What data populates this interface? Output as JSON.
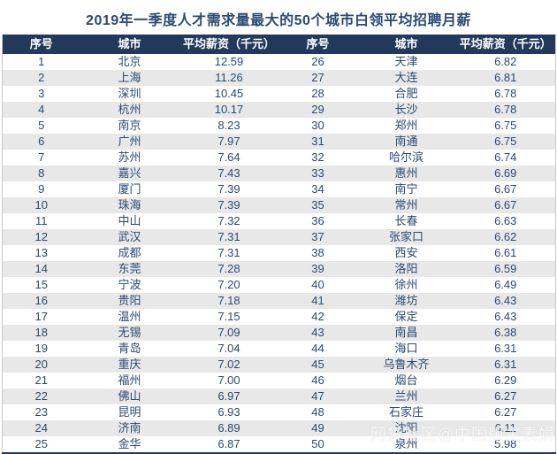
{
  "chart_data": {
    "type": "table",
    "title": "2019年一季度人才需求量最大的50个城市白领平均招聘月薪",
    "columns": [
      "序号",
      "城市",
      "平均薪资（千元）",
      "序号",
      "城市",
      "平均薪资（千元）"
    ],
    "rows": [
      [
        "1",
        "北京",
        "12.59",
        "26",
        "天津",
        "6.82"
      ],
      [
        "2",
        "上海",
        "11.26",
        "27",
        "大连",
        "6.81"
      ],
      [
        "3",
        "深圳",
        "10.45",
        "28",
        "合肥",
        "6.78"
      ],
      [
        "4",
        "杭州",
        "10.17",
        "29",
        "长沙",
        "6.78"
      ],
      [
        "5",
        "南京",
        "8.23",
        "30",
        "郑州",
        "6.75"
      ],
      [
        "6",
        "广州",
        "7.97",
        "31",
        "南通",
        "6.75"
      ],
      [
        "7",
        "苏州",
        "7.64",
        "32",
        "哈尔滨",
        "6.74"
      ],
      [
        "8",
        "嘉兴",
        "7.43",
        "33",
        "惠州",
        "6.69"
      ],
      [
        "9",
        "厦门",
        "7.39",
        "34",
        "南宁",
        "6.67"
      ],
      [
        "10",
        "珠海",
        "7.39",
        "35",
        "常州",
        "6.67"
      ],
      [
        "11",
        "中山",
        "7.32",
        "36",
        "长春",
        "6.63"
      ],
      [
        "12",
        "武汉",
        "7.31",
        "37",
        "张家口",
        "6.62"
      ],
      [
        "13",
        "成都",
        "7.31",
        "38",
        "西安",
        "6.61"
      ],
      [
        "14",
        "东莞",
        "7.28",
        "39",
        "洛阳",
        "6.59"
      ],
      [
        "15",
        "宁波",
        "7.20",
        "40",
        "徐州",
        "6.49"
      ],
      [
        "16",
        "贵阳",
        "7.18",
        "41",
        "潍坊",
        "6.43"
      ],
      [
        "17",
        "温州",
        "7.15",
        "42",
        "保定",
        "6.43"
      ],
      [
        "18",
        "无锡",
        "7.09",
        "43",
        "南昌",
        "6.38"
      ],
      [
        "19",
        "青岛",
        "7.04",
        "44",
        "海口",
        "6.31"
      ],
      [
        "20",
        "重庆",
        "7.02",
        "45",
        "乌鲁木齐",
        "6.31"
      ],
      [
        "21",
        "福州",
        "7.00",
        "46",
        "烟台",
        "6.29"
      ],
      [
        "22",
        "佛山",
        "6.97",
        "47",
        "兰州",
        "6.27"
      ],
      [
        "23",
        "昆明",
        "6.93",
        "48",
        "石家庄",
        "6.27"
      ],
      [
        "24",
        "济南",
        "6.89",
        "49",
        "沈阳",
        "6.11"
      ],
      [
        "25",
        "金华",
        "6.87",
        "50",
        "泉州",
        "5.98"
      ]
    ]
  },
  "watermark": {
    "text": "网贷社区@中国版主素娟"
  },
  "colors": {
    "header_bg": "#23395c",
    "header_text": "#ffffff",
    "body_text": "#2b4a72",
    "row_alt": "#e8e8e8",
    "row_bg": "#ffffff",
    "border_light": "#c8c8c8"
  }
}
